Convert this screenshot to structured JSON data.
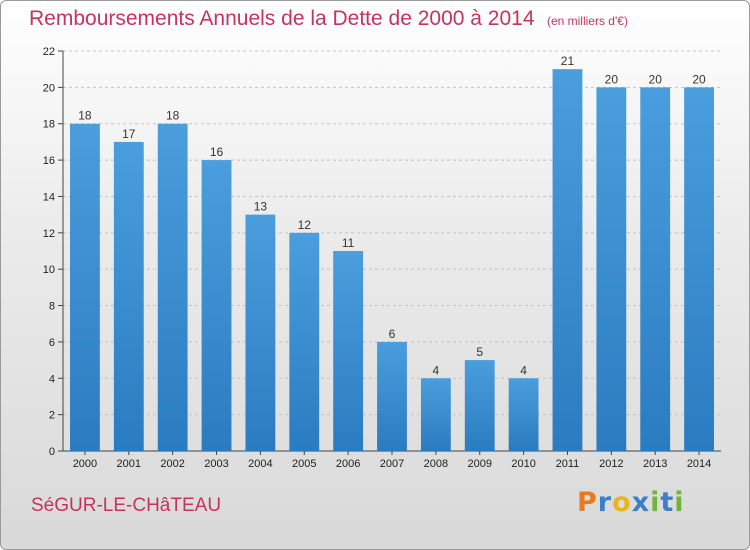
{
  "header": {
    "title": "Remboursements Annuels de la Dette de 2000 à 2014",
    "unit": "(en milliers d'€)"
  },
  "footer": {
    "commune": "SéGUR-LE-CHâTEAU",
    "brand": {
      "letters": [
        "P",
        "r",
        "o",
        "x",
        "i",
        "t",
        "i"
      ],
      "colors": [
        "#e87b1f",
        "#3a7fc8",
        "#e8b51f",
        "#3a7fc8",
        "#6fb53a",
        "#3a7fc8",
        "#6fb53a"
      ]
    }
  },
  "chart_data": {
    "type": "bar",
    "title": "Remboursements Annuels de la Dette de 2000 à 2014",
    "categories": [
      "2000",
      "2001",
      "2002",
      "2003",
      "2004",
      "2005",
      "2006",
      "2007",
      "2008",
      "2009",
      "2010",
      "2011",
      "2012",
      "2013",
      "2014"
    ],
    "values": [
      18,
      17,
      18,
      16,
      13,
      12,
      11,
      6,
      4,
      5,
      4,
      21,
      20,
      20,
      20
    ],
    "ylim": [
      0,
      22
    ],
    "yticks": [
      0,
      2,
      4,
      6,
      8,
      10,
      12,
      14,
      16,
      18,
      20,
      22
    ],
    "grid": true,
    "bar_color": "#4a9edd",
    "bar_color_dark": "#2a7cc0"
  }
}
